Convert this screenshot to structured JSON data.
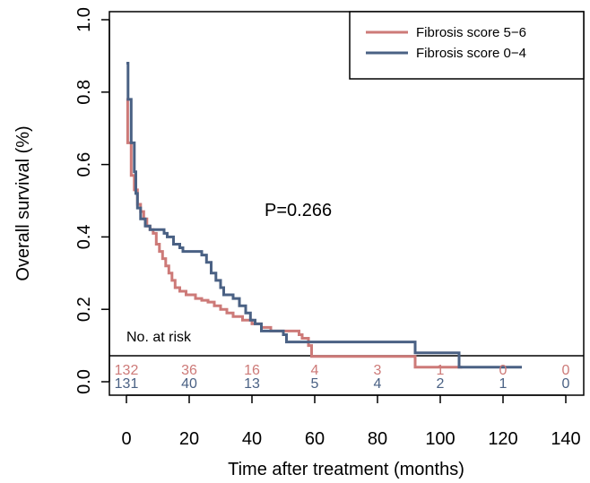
{
  "chart_data": {
    "type": "line",
    "subtype": "kaplan-meier",
    "xlabel": "Time after treatment (months)",
    "ylabel": "Overall survival (%)",
    "xlim": [
      0,
      140
    ],
    "ylim": [
      0,
      1.0
    ],
    "x_ticks": [
      0,
      20,
      40,
      60,
      80,
      100,
      120,
      140
    ],
    "y_ticks": [
      0.0,
      0.2,
      0.4,
      0.6,
      0.8,
      1.0
    ],
    "x_tick_labels": [
      "0",
      "20",
      "40",
      "60",
      "80",
      "100",
      "120",
      "140"
    ],
    "y_tick_labels": [
      "0.0",
      "0.2",
      "0.4",
      "0.6",
      "0.8",
      "1.0"
    ],
    "grid": false,
    "legend_position": "top-right",
    "annotation": "P=0.266",
    "series": [
      {
        "name": "Fibrosis score 5−6",
        "color": "#cd7a78",
        "steps": [
          [
            0,
            0.78
          ],
          [
            0.4,
            0.66
          ],
          [
            1.5,
            0.57
          ],
          [
            2.5,
            0.53
          ],
          [
            3.5,
            0.49
          ],
          [
            4.5,
            0.47
          ],
          [
            5.5,
            0.45
          ],
          [
            6.5,
            0.43
          ],
          [
            7.5,
            0.42
          ],
          [
            8.5,
            0.41
          ],
          [
            9.5,
            0.38
          ],
          [
            10.5,
            0.36
          ],
          [
            11.5,
            0.34
          ],
          [
            12.5,
            0.32
          ],
          [
            13.5,
            0.3
          ],
          [
            14.5,
            0.28
          ],
          [
            15.5,
            0.26
          ],
          [
            17,
            0.25
          ],
          [
            19,
            0.24
          ],
          [
            22,
            0.23
          ],
          [
            24,
            0.225
          ],
          [
            26,
            0.22
          ],
          [
            28,
            0.21
          ],
          [
            30,
            0.2
          ],
          [
            32,
            0.19
          ],
          [
            34,
            0.18
          ],
          [
            37,
            0.17
          ],
          [
            40,
            0.16
          ],
          [
            43,
            0.15
          ],
          [
            46,
            0.14
          ],
          [
            55,
            0.13
          ],
          [
            56,
            0.12
          ],
          [
            58,
            0.1
          ],
          [
            59,
            0.07
          ],
          [
            92,
            0.04
          ],
          [
            107,
            0.04
          ]
        ],
        "at_risk": [
          132,
          36,
          16,
          4,
          3,
          1,
          0,
          0
        ]
      },
      {
        "name": "Fibrosis score 0−4",
        "color": "#4a6184",
        "steps": [
          [
            0,
            0.88
          ],
          [
            0.5,
            0.78
          ],
          [
            1.5,
            0.66
          ],
          [
            2.5,
            0.58
          ],
          [
            3,
            0.52
          ],
          [
            3.5,
            0.48
          ],
          [
            4.5,
            0.45
          ],
          [
            6,
            0.43
          ],
          [
            7.5,
            0.42
          ],
          [
            12,
            0.41
          ],
          [
            13,
            0.4
          ],
          [
            15,
            0.38
          ],
          [
            17,
            0.37
          ],
          [
            18,
            0.36
          ],
          [
            24,
            0.35
          ],
          [
            25.5,
            0.33
          ],
          [
            27,
            0.3
          ],
          [
            28.5,
            0.28
          ],
          [
            30,
            0.26
          ],
          [
            31,
            0.24
          ],
          [
            34,
            0.23
          ],
          [
            36,
            0.21
          ],
          [
            38,
            0.19
          ],
          [
            39.5,
            0.17
          ],
          [
            41,
            0.16
          ],
          [
            43,
            0.14
          ],
          [
            50,
            0.13
          ],
          [
            51,
            0.11
          ],
          [
            92,
            0.08
          ],
          [
            106,
            0.04
          ],
          [
            126,
            0.04
          ]
        ],
        "at_risk": [
          131,
          40,
          13,
          5,
          4,
          2,
          1,
          0
        ]
      }
    ],
    "risk_table_title": "No. at risk",
    "risk_table_times": [
      0,
      20,
      40,
      60,
      80,
      100,
      120,
      140
    ]
  }
}
